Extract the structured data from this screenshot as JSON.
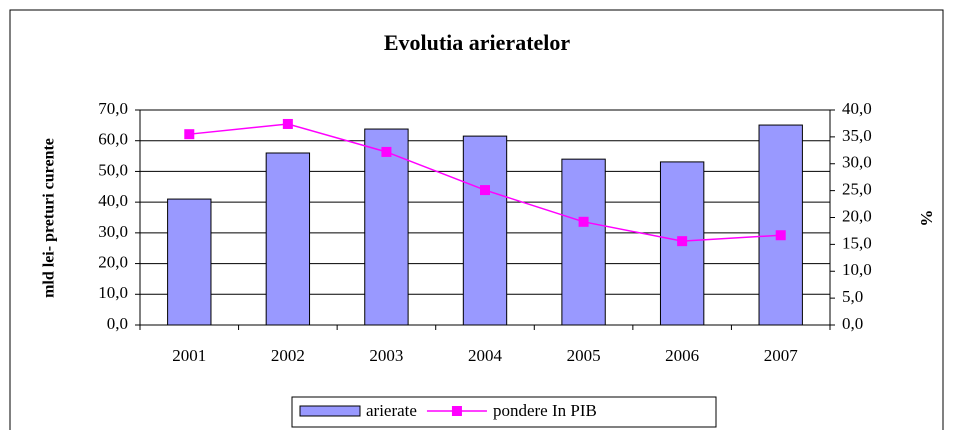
{
  "chart_data": {
    "type": "bar",
    "title": "Evolutia arieratelor",
    "ylabel": "mld lei- preturi curente",
    "y2label": "%",
    "categories": [
      "2001",
      "2002",
      "2003",
      "2004",
      "2005",
      "2006",
      "2007"
    ],
    "series": [
      {
        "name": "arierate",
        "color": "#9999ff",
        "type": "bar",
        "values": [
          41.0,
          56.0,
          63.8,
          61.5,
          54.0,
          53.1,
          65.1
        ]
      },
      {
        "name": "pondere In PIB",
        "color": "#ff00ff",
        "type": "line",
        "axis": "y2",
        "values": [
          35.5,
          37.4,
          32.2,
          25.1,
          19.2,
          15.6,
          16.7
        ]
      }
    ],
    "ylim": [
      0,
      70
    ],
    "yticks": [
      {
        "value": 0,
        "label": "0,0"
      },
      {
        "value": 10,
        "label": "10,0"
      },
      {
        "value": 20,
        "label": "20,0"
      },
      {
        "value": 30,
        "label": "30,0"
      },
      {
        "value": 40,
        "label": "40,0"
      },
      {
        "value": 50,
        "label": "50,0"
      },
      {
        "value": 60,
        "label": "60,0"
      },
      {
        "value": 70,
        "label": "70,0"
      }
    ],
    "y2lim": [
      0,
      40
    ],
    "y2ticks": [
      {
        "value": 0,
        "label": "0,0"
      },
      {
        "value": 5,
        "label": "5,0"
      },
      {
        "value": 10,
        "label": "10,0"
      },
      {
        "value": 15,
        "label": "15,0"
      },
      {
        "value": 20,
        "label": "20,0"
      },
      {
        "value": 25,
        "label": "25,0"
      },
      {
        "value": 30,
        "label": "30,0"
      },
      {
        "value": 35,
        "label": "35,0"
      },
      {
        "value": 40,
        "label": "40,0"
      }
    ],
    "grid": true
  }
}
